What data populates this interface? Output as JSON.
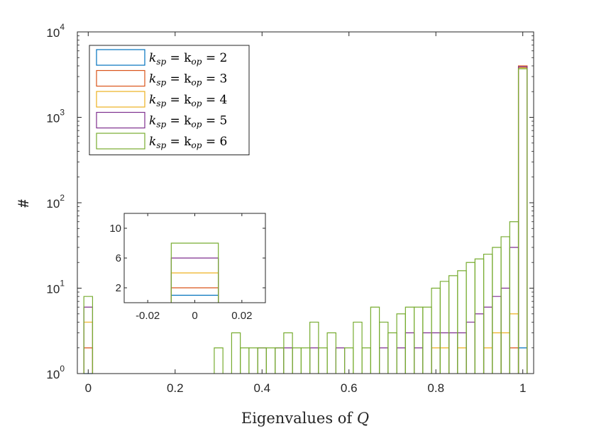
{
  "chart_data": {
    "type": "histogram",
    "title": "",
    "xlabel_prefix": "Eigenvalues of ",
    "xlabel_var": "Q",
    "ylabel": "#",
    "yscale": "log",
    "xlim": [
      -0.025,
      1.025
    ],
    "ylim": [
      1,
      10000
    ],
    "xticks": [
      0,
      0.2,
      0.4,
      0.6,
      0.8,
      1
    ],
    "xtick_labels": [
      "0",
      "0.2",
      "0.4",
      "0.6",
      "0.8",
      "1"
    ],
    "yticks": [
      1,
      10,
      100,
      1000,
      10000
    ],
    "ytick_labels": [
      "10",
      "10",
      "10",
      "10",
      "10"
    ],
    "ytick_exponents": [
      "0",
      "1",
      "2",
      "3",
      "4"
    ],
    "bin_width": 0.02,
    "legend_location": "top-left",
    "series": [
      {
        "name": "k_sp = k_op = 2",
        "label_prefix": "k",
        "label_sub1": "sp",
        "label_mid": " = k",
        "label_sub2": "op",
        "label_suffix": " = 2",
        "color": "#0072BD",
        "bars": [
          {
            "x": 0.0,
            "y": 1
          },
          {
            "x": 1.0,
            "y": 2
          }
        ]
      },
      {
        "name": "k_sp = k_op = 3",
        "label_prefix": "k",
        "label_sub1": "sp",
        "label_mid": " = k",
        "label_sub2": "op",
        "label_suffix": " = 3",
        "color": "#D95319",
        "bars": [
          {
            "x": 0.0,
            "y": 2
          },
          {
            "x": 0.98,
            "y": 2
          },
          {
            "x": 1.0,
            "y": 4000
          }
        ]
      },
      {
        "name": "k_sp = k_op = 4",
        "label_prefix": "k",
        "label_sub1": "sp",
        "label_mid": " = k",
        "label_sub2": "op",
        "label_suffix": " = 4",
        "color": "#EDB120",
        "bars": [
          {
            "x": 0.0,
            "y": 4
          },
          {
            "x": 0.8,
            "y": 2
          },
          {
            "x": 0.82,
            "y": 2
          },
          {
            "x": 0.86,
            "y": 2
          },
          {
            "x": 0.92,
            "y": 2
          },
          {
            "x": 0.94,
            "y": 3
          },
          {
            "x": 0.96,
            "y": 3
          },
          {
            "x": 0.98,
            "y": 5
          },
          {
            "x": 1.0,
            "y": 3800
          }
        ]
      },
      {
        "name": "k_sp = k_op = 5",
        "label_prefix": "k",
        "label_sub1": "sp",
        "label_mid": " = k",
        "label_sub2": "op",
        "label_suffix": " = 5",
        "color": "#7E2F8E",
        "bars": [
          {
            "x": 0.0,
            "y": 6
          },
          {
            "x": 0.4,
            "y": 2
          },
          {
            "x": 0.44,
            "y": 2
          },
          {
            "x": 0.46,
            "y": 2
          },
          {
            "x": 0.52,
            "y": 2
          },
          {
            "x": 0.58,
            "y": 2
          },
          {
            "x": 0.68,
            "y": 2
          },
          {
            "x": 0.72,
            "y": 2
          },
          {
            "x": 0.74,
            "y": 3
          },
          {
            "x": 0.76,
            "y": 2
          },
          {
            "x": 0.78,
            "y": 3
          },
          {
            "x": 0.8,
            "y": 3
          },
          {
            "x": 0.82,
            "y": 3
          },
          {
            "x": 0.84,
            "y": 3
          },
          {
            "x": 0.86,
            "y": 3
          },
          {
            "x": 0.88,
            "y": 4
          },
          {
            "x": 0.9,
            "y": 5
          },
          {
            "x": 0.92,
            "y": 6
          },
          {
            "x": 0.94,
            "y": 8
          },
          {
            "x": 0.96,
            "y": 10
          },
          {
            "x": 0.98,
            "y": 30
          },
          {
            "x": 1.0,
            "y": 3900
          }
        ]
      },
      {
        "name": "k_sp = k_op = 6",
        "label_prefix": "k",
        "label_sub1": "sp",
        "label_mid": " = k",
        "label_sub2": "op",
        "label_suffix": " = 6",
        "color": "#77AC30",
        "bars": [
          {
            "x": 0.0,
            "y": 8
          },
          {
            "x": 0.3,
            "y": 2
          },
          {
            "x": 0.34,
            "y": 3
          },
          {
            "x": 0.36,
            "y": 2
          },
          {
            "x": 0.38,
            "y": 2
          },
          {
            "x": 0.4,
            "y": 2
          },
          {
            "x": 0.42,
            "y": 2
          },
          {
            "x": 0.44,
            "y": 2
          },
          {
            "x": 0.46,
            "y": 3
          },
          {
            "x": 0.48,
            "y": 2
          },
          {
            "x": 0.5,
            "y": 2
          },
          {
            "x": 0.52,
            "y": 4
          },
          {
            "x": 0.54,
            "y": 2
          },
          {
            "x": 0.56,
            "y": 3
          },
          {
            "x": 0.6,
            "y": 2
          },
          {
            "x": 0.62,
            "y": 4
          },
          {
            "x": 0.64,
            "y": 2
          },
          {
            "x": 0.66,
            "y": 6
          },
          {
            "x": 0.68,
            "y": 4
          },
          {
            "x": 0.7,
            "y": 3
          },
          {
            "x": 0.72,
            "y": 5
          },
          {
            "x": 0.74,
            "y": 6
          },
          {
            "x": 0.76,
            "y": 6
          },
          {
            "x": 0.78,
            "y": 6
          },
          {
            "x": 0.8,
            "y": 10
          },
          {
            "x": 0.82,
            "y": 12
          },
          {
            "x": 0.84,
            "y": 14
          },
          {
            "x": 0.86,
            "y": 16
          },
          {
            "x": 0.88,
            "y": 20
          },
          {
            "x": 0.9,
            "y": 22
          },
          {
            "x": 0.92,
            "y": 25
          },
          {
            "x": 0.94,
            "y": 30
          },
          {
            "x": 0.96,
            "y": 40
          },
          {
            "x": 0.98,
            "y": 60
          },
          {
            "x": 1.0,
            "y": 3700
          }
        ]
      }
    ],
    "inset": {
      "type": "histogram",
      "xlim": [
        -0.03,
        0.03
      ],
      "ylim": [
        0,
        12
      ],
      "xticks": [
        -0.02,
        0,
        0.02
      ],
      "xtick_labels": [
        "-0.02",
        "0",
        "0.02"
      ],
      "yticks": [
        2,
        6,
        10
      ],
      "ytick_labels": [
        "2",
        "6",
        "10"
      ],
      "bin_x": [
        -0.01,
        0.01
      ],
      "values": [
        {
          "series": "k_sp = k_op = 2",
          "y": 1
        },
        {
          "series": "k_sp = k_op = 3",
          "y": 2
        },
        {
          "series": "k_sp = k_op = 4",
          "y": 4
        },
        {
          "series": "k_sp = k_op = 5",
          "y": 6
        },
        {
          "series": "k_sp = k_op = 6",
          "y": 8
        }
      ]
    }
  }
}
